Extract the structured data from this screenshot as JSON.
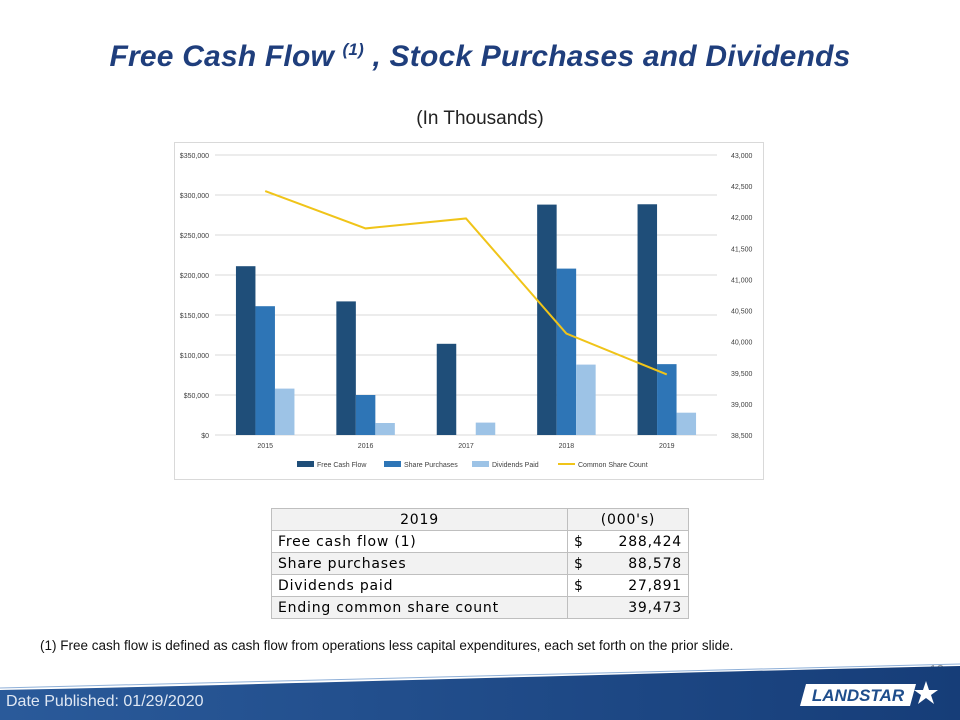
{
  "title": {
    "main": "Free Cash Flow ",
    "sup": "(1)",
    "rest": " , Stock Purchases and Dividends"
  },
  "subtitle": "(In Thousands)",
  "chart_data": {
    "type": "bar",
    "categories": [
      "2015",
      "2016",
      "2017",
      "2018",
      "2019"
    ],
    "series": [
      {
        "name": "Free Cash Flow",
        "color": "#1f4e79",
        "axis": "left",
        "values": [
          211000,
          167000,
          114000,
          288000,
          288424
        ]
      },
      {
        "name": "Share Purchases",
        "color": "#2e75b6",
        "axis": "left",
        "values": [
          161000,
          50000,
          0,
          208000,
          88578
        ]
      },
      {
        "name": "Dividends Paid",
        "color": "#9dc3e6",
        "axis": "left",
        "values": [
          58000,
          15000,
          15500,
          88000,
          27891
        ]
      },
      {
        "name": "Common Share Count",
        "color": "#f0c419",
        "axis": "right",
        "type": "line",
        "values": [
          42420,
          41820,
          41980,
          40130,
          39473
        ]
      }
    ],
    "left_axis": {
      "min": 0,
      "max": 350000,
      "ticks": [
        "$0",
        "$50,000",
        "$100,000",
        "$150,000",
        "$200,000",
        "$250,000",
        "$300,000",
        "$350,000"
      ]
    },
    "right_axis": {
      "min": 38500,
      "max": 43000,
      "ticks": [
        "38,500",
        "39,000",
        "39,500",
        "40,000",
        "40,500",
        "41,000",
        "41,500",
        "42,000",
        "42,500",
        "43,000"
      ]
    },
    "grid": true,
    "legend_position": "bottom"
  },
  "table": {
    "header": [
      "2019",
      "(000's)"
    ],
    "rows": [
      {
        "label": "Free cash flow (1)",
        "dollar": "$",
        "value": "288,424"
      },
      {
        "label": "Share purchases",
        "dollar": "$",
        "value": "88,578"
      },
      {
        "label": "Dividends paid",
        "dollar": "$",
        "value": "27,891"
      },
      {
        "label": "Ending common share count",
        "dollar": "",
        "value": "39,473"
      }
    ]
  },
  "footnote": "(1)  Free cash flow is defined as cash flow from operations less capital expenditures, each set forth on the prior slide.",
  "page_number": "13",
  "date_published": "Date Published:  01/29/2020",
  "logo_text": "LANDSTAR",
  "colors": {
    "title": "#1f3e7c",
    "footer_band": "#1f4e8c"
  }
}
